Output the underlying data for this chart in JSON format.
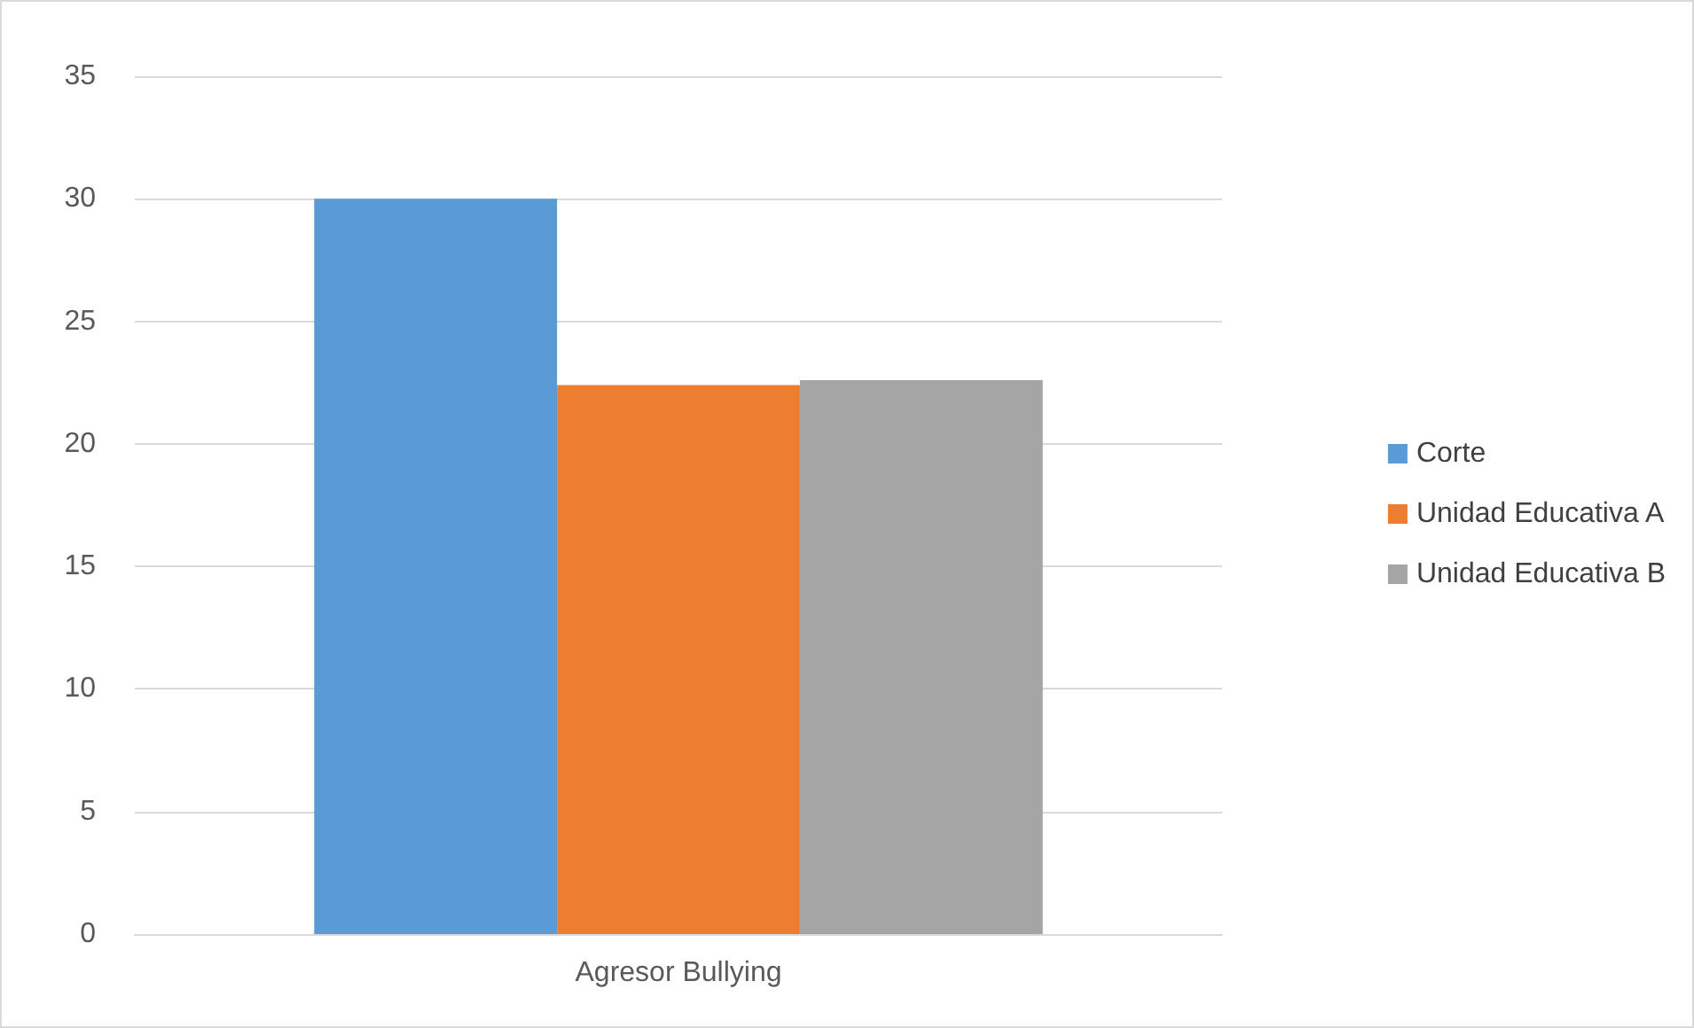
{
  "chart_data": {
    "type": "bar",
    "categories": [
      "Agresor Bullying"
    ],
    "series": [
      {
        "name": "Corte",
        "color": "#5b9bd5",
        "values": [
          30
        ]
      },
      {
        "name": "Unidad Educativa A",
        "color": "#ed7d31",
        "values": [
          22.4
        ]
      },
      {
        "name": "Unidad Educativa B",
        "color": "#a5a5a5",
        "values": [
          22.6
        ]
      }
    ],
    "ylim": [
      0,
      35
    ],
    "yticks": [
      0,
      5,
      10,
      15,
      20,
      25,
      30,
      35
    ],
    "grid": "y",
    "legend": "right"
  }
}
